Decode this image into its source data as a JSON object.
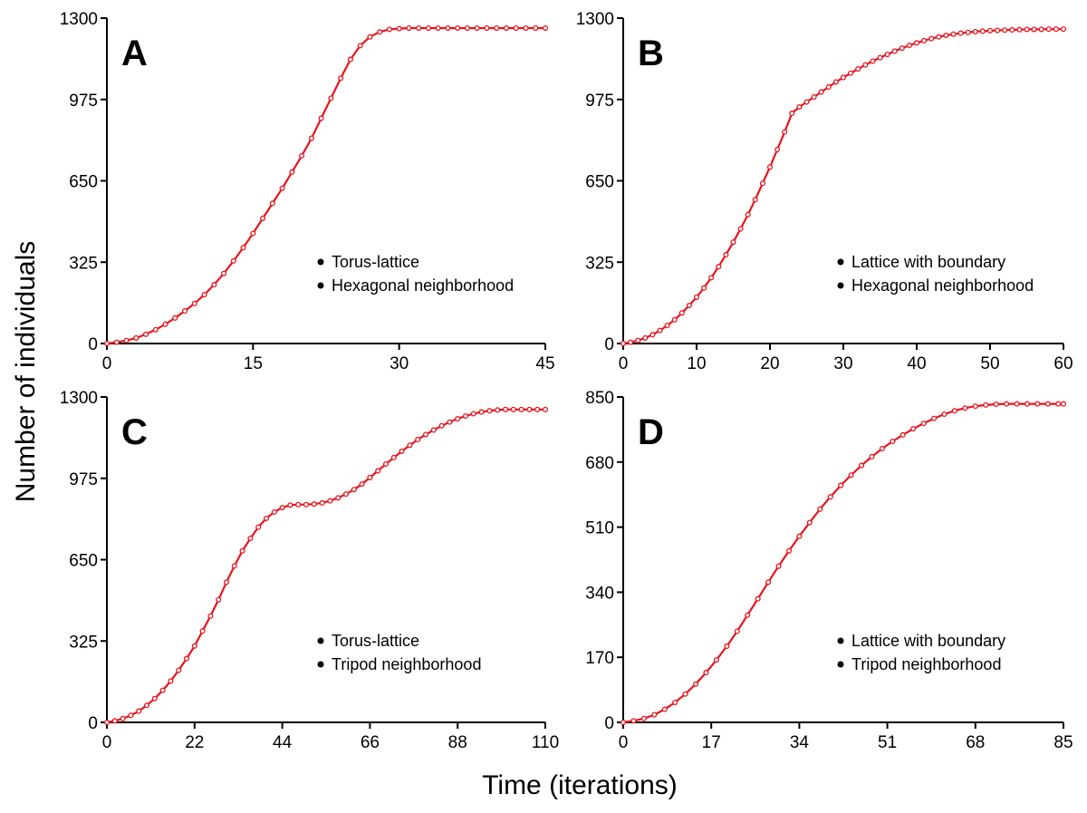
{
  "figure": {
    "ylabel": "Number of individuals",
    "xlabel": "Time (iterations)",
    "series_color": "#e8141c"
  },
  "chart_data": [
    {
      "type": "line",
      "panel": "A",
      "xlim": [
        0,
        45
      ],
      "ylim": [
        0,
        1300
      ],
      "xticks": [
        0,
        15,
        30,
        45
      ],
      "yticks": [
        0,
        325,
        650,
        975,
        1300
      ],
      "legend": [
        "Torus-lattice",
        "Hexagonal neighborhood"
      ],
      "legend_position": "right",
      "series": [
        {
          "x": [
            0,
            1,
            2,
            3,
            4,
            5,
            6,
            7,
            8,
            9,
            10,
            11,
            12,
            13,
            14,
            15,
            16,
            17,
            18,
            19,
            20,
            21,
            22,
            23,
            24,
            25,
            26,
            27,
            28,
            29,
            30,
            31,
            32,
            33,
            34,
            35,
            36,
            37,
            38,
            39,
            40,
            41,
            42,
            43,
            44,
            45
          ],
          "y": [
            0,
            5,
            12,
            22,
            37,
            55,
            77,
            102,
            130,
            160,
            195,
            235,
            280,
            330,
            383,
            440,
            500,
            560,
            620,
            685,
            750,
            820,
            900,
            980,
            1060,
            1135,
            1190,
            1225,
            1245,
            1255,
            1258,
            1260,
            1260,
            1260,
            1260,
            1260,
            1260,
            1260,
            1260,
            1260,
            1260,
            1260,
            1260,
            1260,
            1260,
            1260
          ]
        }
      ]
    },
    {
      "type": "line",
      "panel": "B",
      "xlim": [
        0,
        60
      ],
      "ylim": [
        0,
        1300
      ],
      "xticks": [
        0,
        10,
        20,
        30,
        40,
        50,
        60
      ],
      "yticks": [
        0,
        325,
        650,
        975,
        1300
      ],
      "legend": [
        "Lattice with boundary",
        "Hexagonal neighborhood"
      ],
      "legend_position": "right",
      "series": [
        {
          "x": [
            0,
            1,
            2,
            3,
            4,
            5,
            6,
            7,
            8,
            9,
            10,
            11,
            12,
            13,
            14,
            15,
            16,
            17,
            18,
            19,
            20,
            21,
            22,
            23,
            24,
            25,
            26,
            27,
            28,
            29,
            30,
            31,
            32,
            33,
            34,
            35,
            36,
            37,
            38,
            39,
            40,
            41,
            42,
            43,
            44,
            45,
            46,
            47,
            48,
            49,
            50,
            51,
            52,
            53,
            54,
            55,
            56,
            57,
            58,
            59,
            60
          ],
          "y": [
            0,
            5,
            12,
            22,
            35,
            52,
            72,
            95,
            122,
            152,
            185,
            222,
            263,
            307,
            355,
            405,
            458,
            515,
            575,
            640,
            705,
            775,
            845,
            920,
            945,
            965,
            985,
            1005,
            1025,
            1045,
            1063,
            1080,
            1097,
            1113,
            1128,
            1142,
            1155,
            1168,
            1180,
            1191,
            1201,
            1210,
            1218,
            1225,
            1231,
            1236,
            1240,
            1243,
            1246,
            1248,
            1250,
            1251,
            1252,
            1253,
            1254,
            1255,
            1255,
            1255,
            1256,
            1256,
            1256
          ]
        }
      ]
    },
    {
      "type": "line",
      "panel": "C",
      "xlim": [
        0,
        110
      ],
      "ylim": [
        0,
        1300
      ],
      "xticks": [
        0,
        22,
        44,
        66,
        88,
        110
      ],
      "yticks": [
        0,
        325,
        650,
        975,
        1300
      ],
      "legend": [
        "Torus-lattice",
        "Tripod neighborhood"
      ],
      "legend_position": "right",
      "series": [
        {
          "x": [
            0,
            2,
            4,
            6,
            8,
            10,
            12,
            14,
            16,
            18,
            20,
            22,
            24,
            26,
            28,
            30,
            32,
            34,
            36,
            38,
            40,
            42,
            44,
            46,
            48,
            50,
            52,
            54,
            56,
            58,
            60,
            62,
            64,
            66,
            68,
            70,
            72,
            74,
            76,
            78,
            80,
            82,
            84,
            86,
            88,
            90,
            92,
            94,
            96,
            98,
            100,
            102,
            104,
            106,
            108,
            110
          ],
          "y": [
            0,
            6,
            15,
            28,
            45,
            68,
            95,
            128,
            165,
            208,
            255,
            305,
            365,
            425,
            490,
            560,
            625,
            685,
            735,
            780,
            815,
            840,
            858,
            868,
            870,
            870,
            872,
            877,
            885,
            897,
            912,
            930,
            952,
            978,
            1005,
            1032,
            1058,
            1083,
            1107,
            1130,
            1150,
            1168,
            1185,
            1200,
            1213,
            1224,
            1233,
            1240,
            1245,
            1248,
            1250,
            1250,
            1250,
            1250,
            1250,
            1250
          ]
        }
      ]
    },
    {
      "type": "line",
      "panel": "D",
      "xlim": [
        0,
        85
      ],
      "ylim": [
        0,
        850
      ],
      "xticks": [
        0,
        17,
        34,
        51,
        68,
        85
      ],
      "yticks": [
        0,
        170,
        340,
        510,
        680,
        850
      ],
      "legend": [
        "Lattice with boundary",
        "Tripod neighborhood"
      ],
      "legend_position": "right",
      "series": [
        {
          "x": [
            0,
            2,
            4,
            6,
            8,
            10,
            12,
            14,
            16,
            18,
            20,
            22,
            24,
            26,
            28,
            30,
            32,
            34,
            36,
            38,
            40,
            42,
            44,
            46,
            48,
            50,
            52,
            54,
            56,
            58,
            60,
            62,
            64,
            66,
            68,
            70,
            72,
            74,
            76,
            78,
            80,
            82,
            84,
            85
          ],
          "y": [
            0,
            4,
            10,
            20,
            34,
            52,
            74,
            100,
            130,
            163,
            199,
            238,
            280,
            323,
            366,
            408,
            448,
            486,
            522,
            557,
            589,
            619,
            646,
            671,
            694,
            715,
            734,
            751,
            767,
            781,
            794,
            805,
            814,
            821,
            826,
            829,
            831,
            832,
            832,
            832,
            832,
            832,
            832,
            832
          ]
        }
      ]
    }
  ]
}
